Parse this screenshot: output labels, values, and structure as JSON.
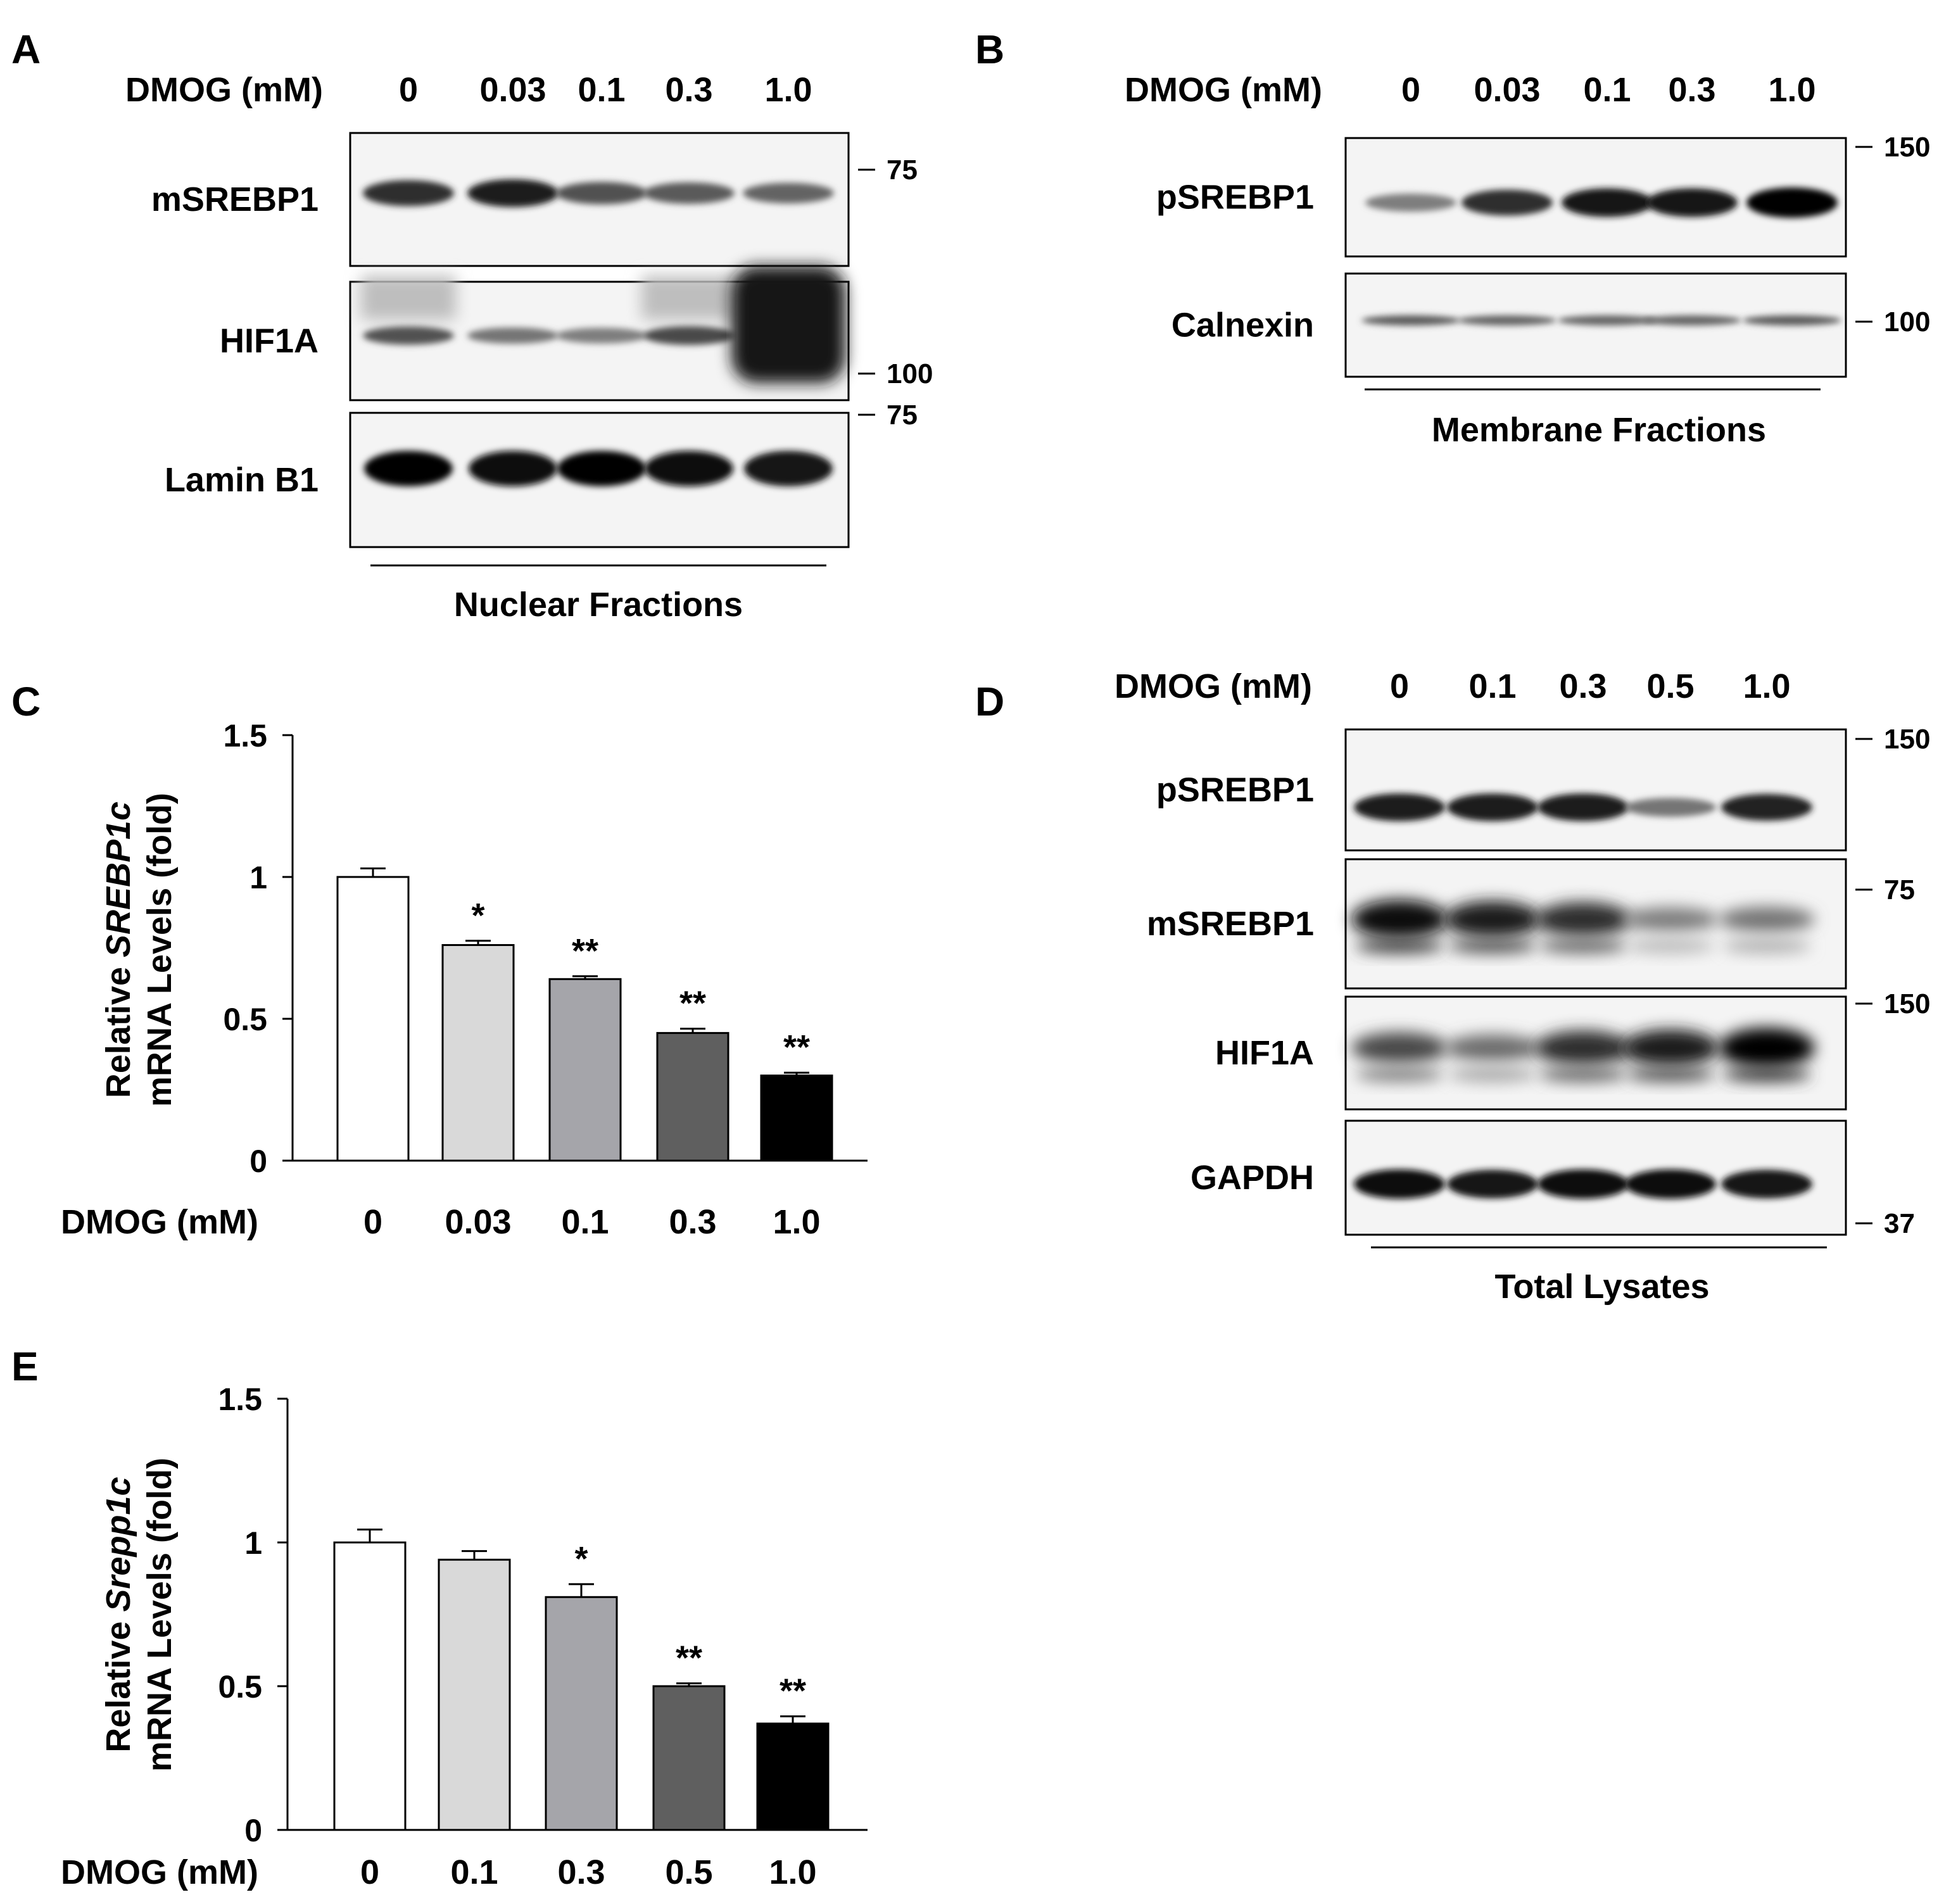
{
  "panels": {
    "A": {
      "label": "A",
      "header_label": "DMOG (mM)",
      "lanes": [
        "0",
        "0.03",
        "0.1",
        "0.3",
        "1.0"
      ],
      "blots": [
        {
          "protein": "mSREBP1",
          "marker": "75",
          "intensity": [
            0.75,
            0.85,
            0.55,
            0.5,
            0.45
          ],
          "style": "band"
        },
        {
          "protein": "HIF1A",
          "marker": "100",
          "intensity": [
            0.55,
            0.35,
            0.3,
            0.6,
            1.0
          ],
          "style": "hif"
        },
        {
          "protein": "Lamin B1",
          "marker": "75",
          "intensity": [
            1.0,
            0.95,
            1.0,
            0.95,
            0.9
          ],
          "style": "thick"
        }
      ],
      "fraction": "Nuclear Fractions"
    },
    "B": {
      "label": "B",
      "header_label": "DMOG (mM)",
      "lanes": [
        "0",
        "0.03",
        "0.1",
        "0.3",
        "1.0"
      ],
      "blots": [
        {
          "protein": "pSREBP1",
          "marker": "150",
          "intensity": [
            0.3,
            0.75,
            0.9,
            0.9,
            1.0
          ],
          "style": "band"
        },
        {
          "protein": "Calnexin",
          "marker": "100",
          "intensity": [
            0.5,
            0.45,
            0.45,
            0.45,
            0.5
          ],
          "style": "thin"
        }
      ],
      "fraction": "Membrane Fractions"
    },
    "D": {
      "label": "D",
      "header_label": "DMOG (mM)",
      "lanes": [
        "0",
        "0.1",
        "0.3",
        "0.5",
        "1.0"
      ],
      "blots": [
        {
          "protein": "pSREBP1",
          "marker": "150",
          "intensity": [
            0.85,
            0.85,
            0.85,
            0.35,
            0.8
          ],
          "style": "band"
        },
        {
          "protein": "mSREBP1",
          "marker": "75",
          "intensity": [
            0.95,
            0.85,
            0.75,
            0.3,
            0.35
          ],
          "style": "smear"
        },
        {
          "protein": "HIF1A",
          "marker": "150",
          "intensity": [
            0.6,
            0.4,
            0.75,
            0.85,
            1.0
          ],
          "style": "smear"
        },
        {
          "protein": "GAPDH",
          "marker": "37",
          "intensity": [
            0.95,
            0.9,
            0.95,
            0.95,
            0.9
          ],
          "style": "band"
        }
      ],
      "fraction": "Total Lysates"
    }
  },
  "chart_data": [
    {
      "panel": "C",
      "type": "bar",
      "xlabel": "DMOG (mM)",
      "ylabel_pre": "Relative ",
      "ylabel_gene": "SREBP1c",
      "ylabel_line2": "mRNA Levels (fold)",
      "categories": [
        "0",
        "0.03",
        "0.1",
        "0.3",
        "1.0"
      ],
      "values": [
        1.0,
        0.76,
        0.64,
        0.45,
        0.3
      ],
      "errors": [
        0.03,
        0.015,
        0.01,
        0.015,
        0.01
      ],
      "significance": [
        "",
        "*",
        "**",
        "**",
        "**"
      ],
      "colors": [
        "#ffffff",
        "#d9d9d9",
        "#a5a5aa",
        "#5f5f5f",
        "#000000"
      ],
      "ylim": [
        0,
        1.5
      ],
      "yticks": [
        "0",
        "0.5",
        "1",
        "1.5"
      ]
    },
    {
      "panel": "E",
      "type": "bar",
      "xlabel": "DMOG (mM)",
      "ylabel_pre": "Relative ",
      "ylabel_gene": "Srepp1c",
      "ylabel_line2": "mRNA Levels (fold)",
      "categories": [
        "0",
        "0.1",
        "0.3",
        "0.5",
        "1.0"
      ],
      "values": [
        1.0,
        0.94,
        0.81,
        0.5,
        0.37
      ],
      "errors": [
        0.045,
        0.03,
        0.045,
        0.01,
        0.025
      ],
      "significance": [
        "",
        "",
        "*",
        "**",
        "**"
      ],
      "colors": [
        "#ffffff",
        "#d9d9d9",
        "#a5a5aa",
        "#5f5f5f",
        "#000000"
      ],
      "ylim": [
        0,
        1.5
      ],
      "yticks": [
        "0",
        "0.5",
        "1",
        "1.5"
      ]
    }
  ]
}
